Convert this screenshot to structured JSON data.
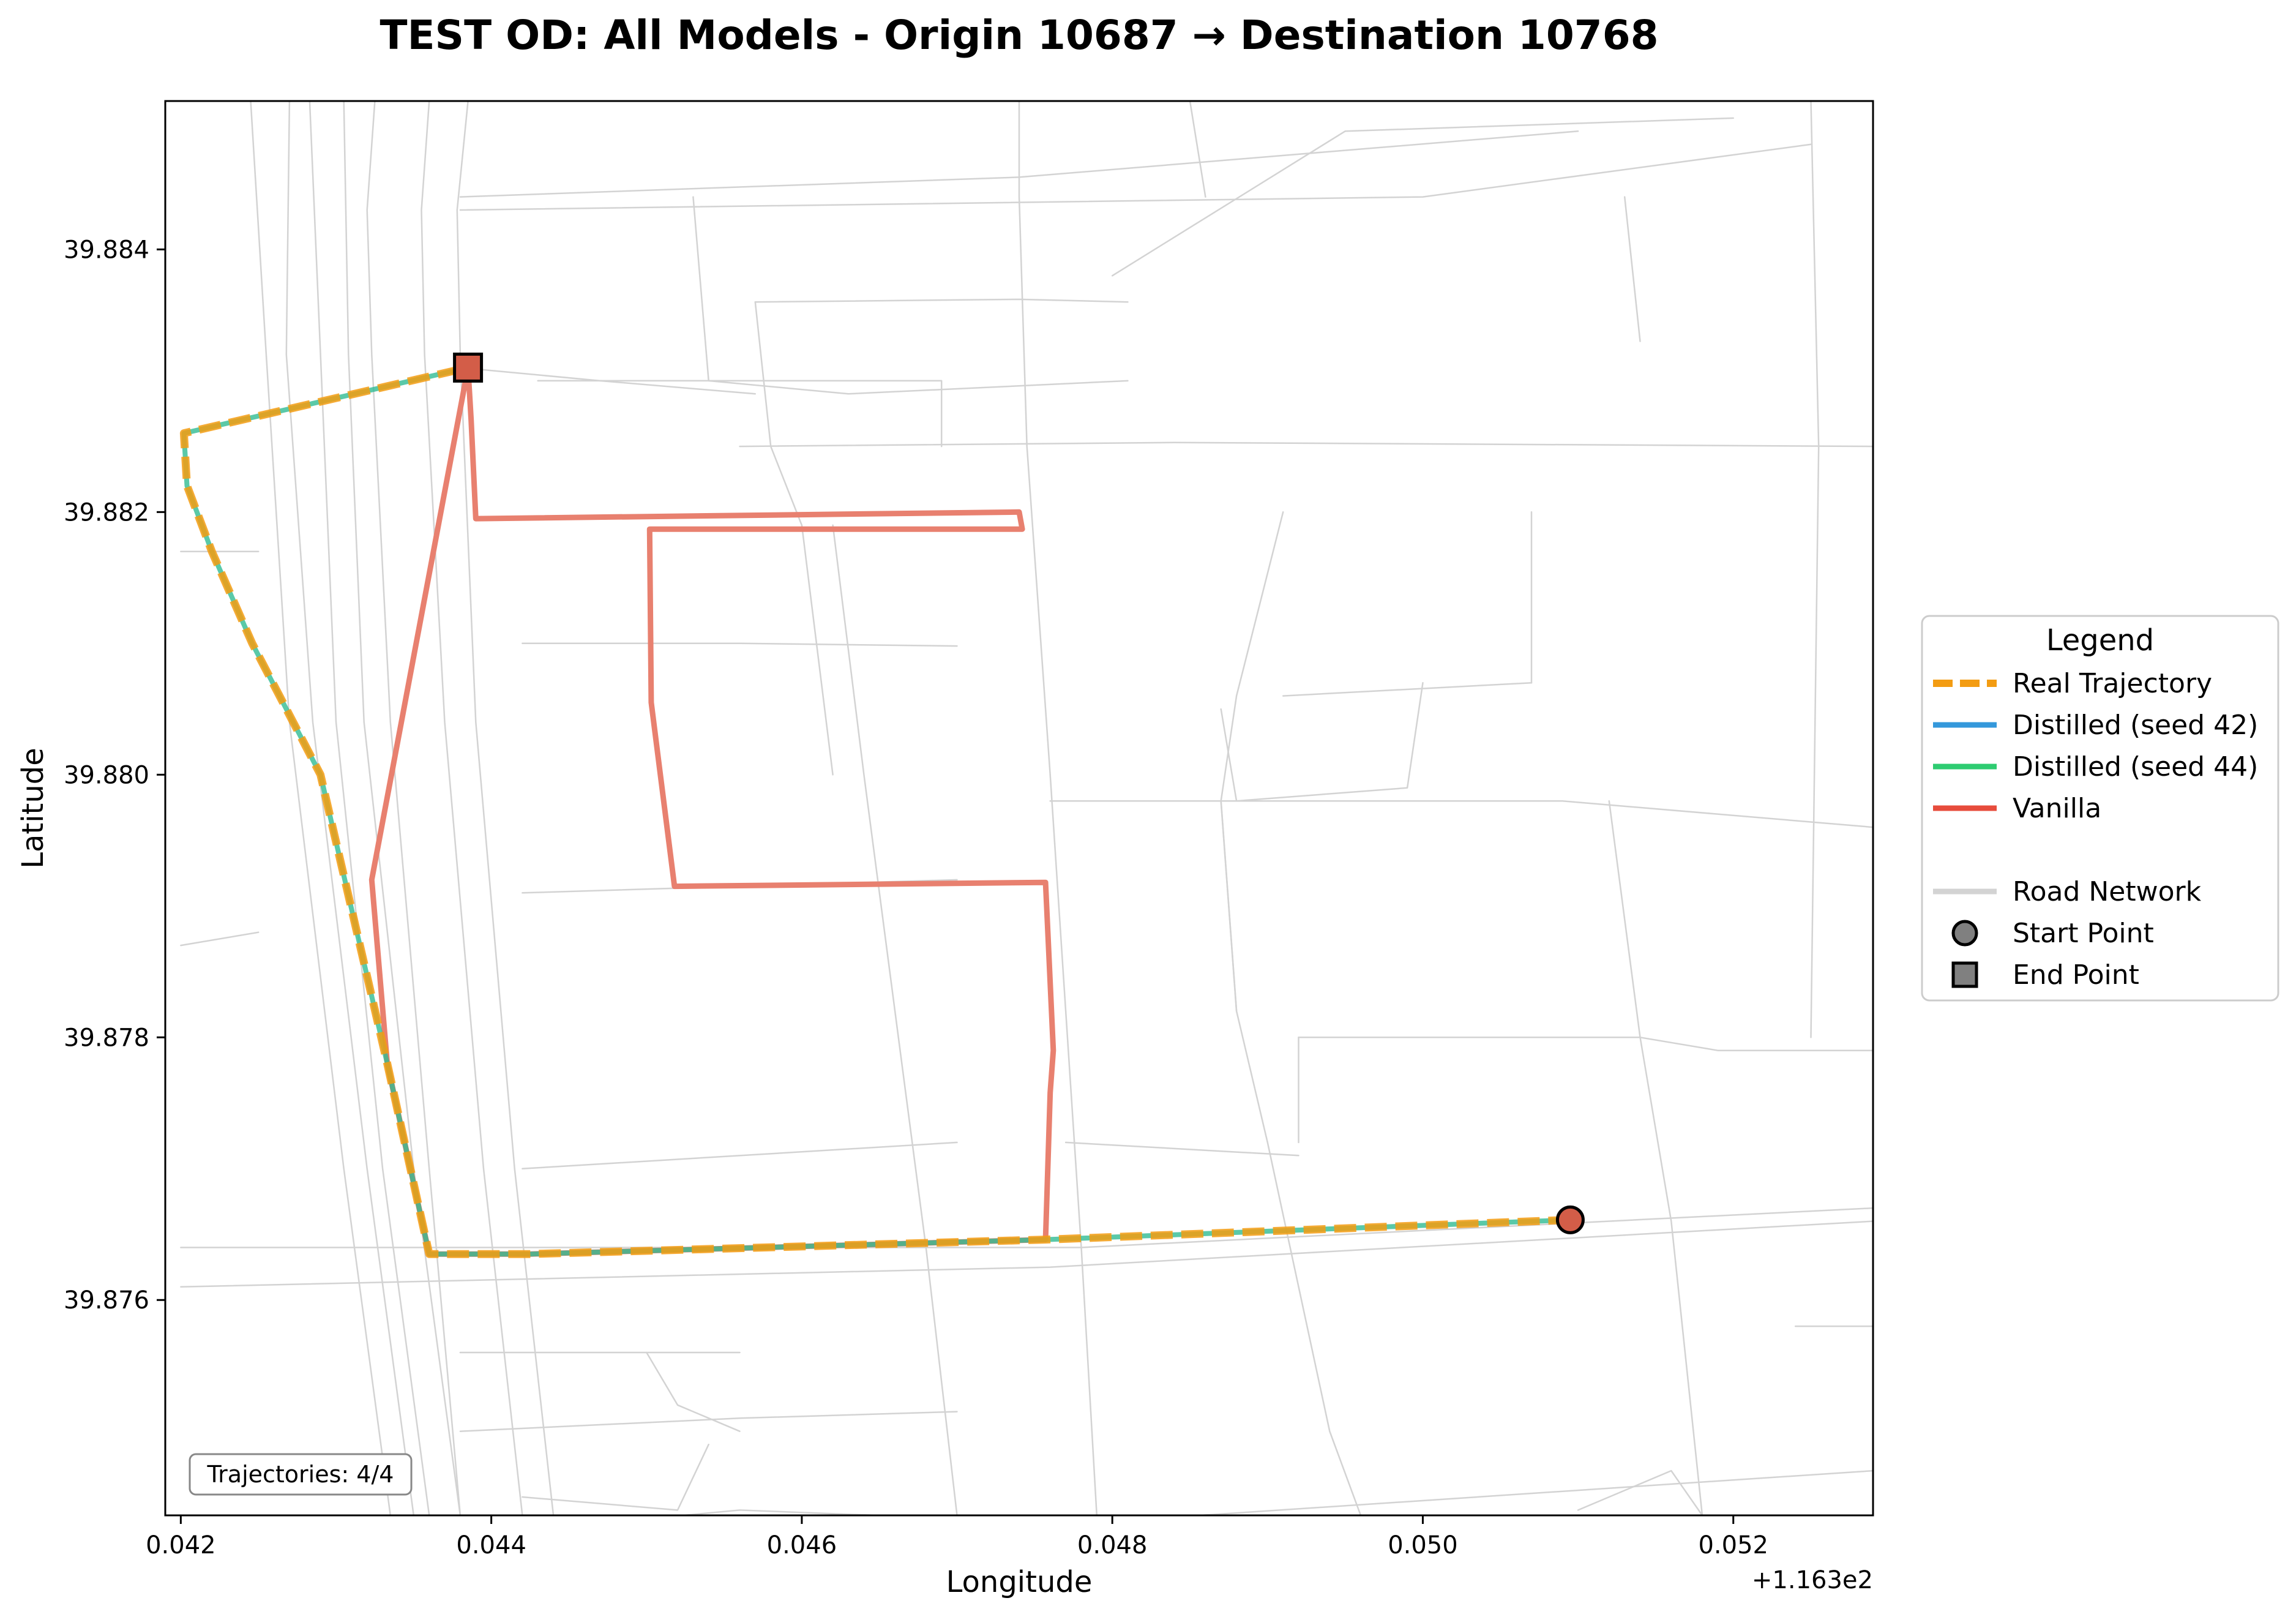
{
  "chart_data": {
    "type": "line",
    "title": "TEST OD: All Models - Origin 10687 → Destination 10768",
    "xlabel": "Longitude",
    "ylabel": "Latitude",
    "x_offset_label": "+1.163e2",
    "xlim": [
      0.0419,
      0.0529
    ],
    "ylim": [
      39.87436,
      39.88513
    ],
    "x_ticks": [
      0.042,
      0.044,
      0.046,
      0.048,
      0.05,
      0.052
    ],
    "x_tick_labels": [
      "0.042",
      "0.044",
      "0.046",
      "0.048",
      "0.050",
      "0.052"
    ],
    "y_ticks": [
      39.876,
      39.878,
      39.88,
      39.882,
      39.884
    ],
    "y_tick_labels": [
      "39.876",
      "39.878",
      "39.880",
      "39.882",
      "39.884"
    ],
    "grid": false,
    "legend_position": "right",
    "legend_title": "Legend",
    "legend": [
      {
        "label": "Real Trajectory",
        "kind": "dashed-line",
        "color": "#f39c12"
      },
      {
        "label": "Distilled (seed 42)",
        "kind": "line",
        "color": "#3498db"
      },
      {
        "label": "Distilled (seed 44)",
        "kind": "line",
        "color": "#2ecc71"
      },
      {
        "label": "Vanilla",
        "kind": "line",
        "color": "#e74c3c"
      },
      {
        "label": "",
        "kind": "spacer",
        "color": ""
      },
      {
        "label": "Road Network",
        "kind": "line",
        "color": "#d3d3d3"
      },
      {
        "label": "Start Point",
        "kind": "circle",
        "color": "#808080"
      },
      {
        "label": "End Point",
        "kind": "square",
        "color": "#808080"
      }
    ],
    "annotation": "Trajectories: 4/4",
    "start_point": {
      "x": 0.05095,
      "y": 39.87661,
      "color": "#d35d48"
    },
    "end_point": {
      "x": 0.04385,
      "y": 39.8831,
      "color": "#d35d48"
    },
    "series": [
      {
        "name": "Vanilla",
        "color": "#e8806f",
        "style": "solid",
        "x": [
          0.04385,
          0.04387,
          0.0439,
          0.0474,
          0.04742,
          0.04502,
          0.04503,
          0.04518,
          0.04757,
          0.04762,
          0.0476,
          0.04757,
          0.04425,
          0.0436,
          0.04333,
          0.04323,
          0.04385
        ],
        "y": [
          39.8831,
          39.8827,
          39.88195,
          39.882,
          39.88187,
          39.88187,
          39.88055,
          39.87915,
          39.87918,
          39.8779,
          39.87758,
          39.87646,
          39.87635,
          39.87635,
          39.8778,
          39.8792,
          39.8831
        ]
      },
      {
        "name": "Distilled (seed 42)",
        "color": "#3498db",
        "style": "solid",
        "x": [
          0.05095,
          0.04757,
          0.04425,
          0.0436,
          0.04333,
          0.0429,
          0.04246,
          0.0422,
          0.04204,
          0.04202,
          0.04385
        ],
        "y": [
          39.87661,
          39.87646,
          39.87635,
          39.87635,
          39.8778,
          39.88,
          39.881,
          39.8817,
          39.8822,
          39.8826,
          39.8831
        ]
      },
      {
        "name": "Distilled (seed 44)",
        "color": "#2ecc71",
        "style": "solid",
        "x": [
          0.05095,
          0.04757,
          0.04425,
          0.0436,
          0.04333,
          0.0429,
          0.04246,
          0.0422,
          0.04204,
          0.04202,
          0.04385
        ],
        "y": [
          39.87661,
          39.87646,
          39.87635,
          39.87635,
          39.8778,
          39.88,
          39.881,
          39.8817,
          39.8822,
          39.8826,
          39.8831
        ]
      },
      {
        "name": "Real Trajectory",
        "color": "#f39c12",
        "style": "dashed",
        "x": [
          0.05095,
          0.04757,
          0.04425,
          0.0436,
          0.04333,
          0.0429,
          0.04246,
          0.0422,
          0.04204,
          0.04202,
          0.04385
        ],
        "y": [
          39.87661,
          39.87646,
          39.87635,
          39.87635,
          39.8778,
          39.88,
          39.881,
          39.8817,
          39.8822,
          39.8826,
          39.8831
        ]
      }
    ],
    "road_network": [
      [
        [
          0.04245,
          39.88513
        ],
        [
          0.04255,
          39.8832
        ],
        [
          0.0427,
          39.8804
        ],
        [
          0.04305,
          39.877
        ],
        [
          0.04335,
          39.87436
        ]
      ],
      [
        [
          0.0427,
          39.88513
        ],
        [
          0.04268,
          39.8832
        ],
        [
          0.04285,
          39.8804
        ],
        [
          0.0432,
          39.877
        ],
        [
          0.0435,
          39.87436
        ]
      ],
      [
        [
          0.04283,
          39.88513
        ],
        [
          0.0429,
          39.8832
        ],
        [
          0.043,
          39.8804
        ],
        [
          0.0433,
          39.877
        ],
        [
          0.0436,
          39.87436
        ]
      ],
      [
        [
          0.04305,
          39.88513
        ],
        [
          0.04308,
          39.8832
        ],
        [
          0.04318,
          39.8804
        ],
        [
          0.0435,
          39.877
        ],
        [
          0.0438,
          39.87436
        ]
      ],
      [
        [
          0.04325,
          39.88513
        ],
        [
          0.0432,
          39.8843
        ],
        [
          0.04323,
          39.8832
        ],
        [
          0.04335,
          39.8804
        ],
        [
          0.0436,
          39.877
        ],
        [
          0.0438,
          39.87436
        ]
      ],
      [
        [
          0.0436,
          39.88513
        ],
        [
          0.04355,
          39.8843
        ],
        [
          0.04357,
          39.8832
        ],
        [
          0.0437,
          39.8804
        ],
        [
          0.04395,
          39.877
        ],
        [
          0.0442,
          39.87436
        ]
      ],
      [
        [
          0.04385,
          39.88513
        ],
        [
          0.04378,
          39.8843
        ],
        [
          0.0438,
          39.8832
        ],
        [
          0.0439,
          39.8804
        ],
        [
          0.04415,
          39.877
        ],
        [
          0.0444,
          39.87436
        ]
      ],
      [
        [
          0.0438,
          39.8843
        ],
        [
          0.05,
          39.8844
        ],
        [
          0.0525,
          39.8848
        ]
      ],
      [
        [
          0.0438,
          39.8844
        ],
        [
          0.0474,
          39.88455
        ],
        [
          0.051,
          39.8849
        ]
      ],
      [
        [
          0.0456,
          39.8825
        ],
        [
          0.0484,
          39.88253
        ],
        [
          0.0529,
          39.8825
        ]
      ],
      [
        [
          0.0457,
          39.8836
        ],
        [
          0.0474,
          39.88362
        ],
        [
          0.0481,
          39.8836
        ]
      ],
      [
        [
          0.0457,
          39.8836
        ],
        [
          0.0458,
          39.8825
        ],
        [
          0.046,
          39.8819
        ],
        [
          0.0462,
          39.88
        ]
      ],
      [
        [
          0.0474,
          39.88513
        ],
        [
          0.0474,
          39.8844
        ],
        [
          0.04745,
          39.8825
        ],
        [
          0.0476,
          39.88
        ],
        [
          0.0478,
          39.8764
        ],
        [
          0.0479,
          39.87436
        ]
      ],
      [
        [
          0.0485,
          39.88513
        ],
        [
          0.0486,
          39.8844
        ]
      ],
      [
        [
          0.0525,
          39.88513
        ],
        [
          0.05255,
          39.8825
        ],
        [
          0.0525,
          39.878
        ]
      ],
      [
        [
          0.048,
          39.8838
        ],
        [
          0.0495,
          39.8849
        ],
        [
          0.052,
          39.885
        ]
      ],
      [
        [
          0.0513,
          39.8844
        ],
        [
          0.0514,
          39.8833
        ]
      ],
      [
        [
          0.0453,
          39.8844
        ],
        [
          0.0454,
          39.883
        ],
        [
          0.0463,
          39.8829
        ],
        [
          0.0481,
          39.883
        ]
      ],
      [
        [
          0.0462,
          39.8819
        ],
        [
          0.0464,
          39.88
        ],
        [
          0.0466,
          39.8782
        ],
        [
          0.0468,
          39.8764
        ],
        [
          0.047,
          39.87436
        ]
      ],
      [
        [
          0.0491,
          39.882
        ],
        [
          0.0488,
          39.8806
        ],
        [
          0.0487,
          39.8798
        ],
        [
          0.0488,
          39.8782
        ]
      ],
      [
        [
          0.0507,
          39.882
        ],
        [
          0.0507,
          39.8807
        ]
      ],
      [
        [
          0.0491,
          39.8806
        ],
        [
          0.0507,
          39.8807
        ]
      ],
      [
        [
          0.0487,
          39.8805
        ],
        [
          0.0488,
          39.8798
        ],
        [
          0.0499,
          39.8799
        ],
        [
          0.05,
          39.8807
        ]
      ],
      [
        [
          0.0487,
          39.8798
        ],
        [
          0.0488,
          39.8782
        ],
        [
          0.049,
          39.8772
        ],
        [
          0.0494,
          39.875
        ],
        [
          0.0496,
          39.87436
        ]
      ],
      [
        [
          0.0442,
          39.881
        ],
        [
          0.0456,
          39.881
        ],
        [
          0.047,
          39.88098
        ]
      ],
      [
        [
          0.0442,
          39.8791
        ],
        [
          0.047,
          39.8792
        ]
      ],
      [
        [
          0.0442,
          39.877
        ],
        [
          0.047,
          39.8772
        ]
      ],
      [
        [
          0.0438,
          39.875
        ],
        [
          0.0456,
          39.8751
        ],
        [
          0.047,
          39.87515
        ]
      ],
      [
        [
          0.0476,
          39.8798
        ],
        [
          0.0487,
          39.8798
        ],
        [
          0.0509,
          39.8798
        ],
        [
          0.0529,
          39.8796
        ]
      ],
      [
        [
          0.0477,
          39.8772
        ],
        [
          0.0492,
          39.8771
        ]
      ],
      [
        [
          0.0492,
          39.878
        ],
        [
          0.0492,
          39.8772
        ]
      ],
      [
        [
          0.0512,
          39.8798
        ],
        [
          0.0514,
          39.878
        ],
        [
          0.0516,
          39.8766
        ],
        [
          0.0518,
          39.87436
        ]
      ],
      [
        [
          0.0514,
          39.878
        ],
        [
          0.0519,
          39.8779
        ],
        [
          0.0529,
          39.8779
        ]
      ],
      [
        [
          0.0492,
          39.878
        ],
        [
          0.0514,
          39.878
        ]
      ],
      [
        [
          0.042,
          39.8764
        ],
        [
          0.0478,
          39.8764
        ],
        [
          0.0529,
          39.8767
        ]
      ],
      [
        [
          0.042,
          39.8761
        ],
        [
          0.0476,
          39.87625
        ],
        [
          0.0529,
          39.8766
        ]
      ],
      [
        [
          0.0438,
          39.8756
        ],
        [
          0.0456,
          39.8756
        ]
      ],
      [
        [
          0.045,
          39.8756
        ],
        [
          0.0452,
          39.8752
        ],
        [
          0.0456,
          39.875
        ]
      ],
      [
        [
          0.0438,
          39.8742
        ],
        [
          0.0456,
          39.8744
        ],
        [
          0.0478,
          39.8743
        ],
        [
          0.0529,
          39.8747
        ]
      ],
      [
        [
          0.0442,
          39.8745
        ],
        [
          0.0452,
          39.8744
        ],
        [
          0.0454,
          39.8749
        ]
      ],
      [
        [
          0.0436,
          39.874
        ],
        [
          0.0454,
          39.8742
        ]
      ],
      [
        [
          0.0524,
          39.8758
        ],
        [
          0.0529,
          39.8758
        ]
      ],
      [
        [
          0.051,
          39.8744
        ],
        [
          0.0516,
          39.8747
        ],
        [
          0.0518,
          39.87436
        ]
      ],
      [
        [
          0.042,
          39.8817
        ],
        [
          0.0425,
          39.8817
        ]
      ],
      [
        [
          0.042,
          39.8787
        ],
        [
          0.0425,
          39.8788
        ]
      ],
      [
        [
          0.0443,
          39.883
        ],
        [
          0.0469,
          39.883
        ],
        [
          0.0469,
          39.8825
        ]
      ],
      [
        [
          0.0438,
          39.8831
        ],
        [
          0.0447,
          39.883
        ],
        [
          0.0457,
          39.8829
        ]
      ]
    ]
  }
}
